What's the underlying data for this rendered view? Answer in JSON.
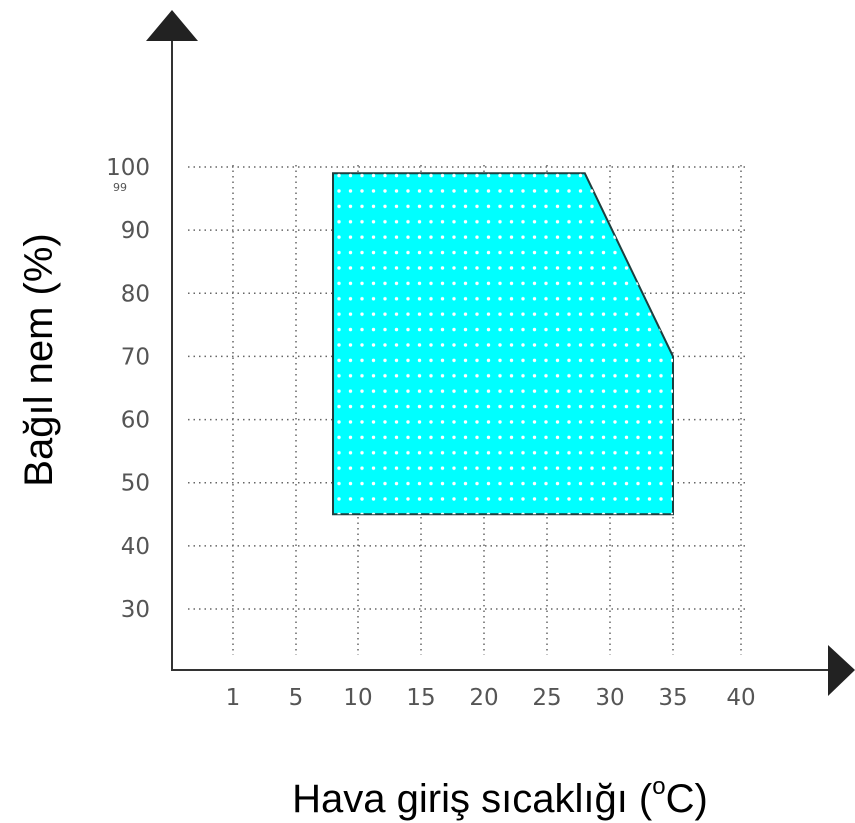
{
  "chart_data": {
    "type": "area",
    "xlabel": "Hava giriş sıcaklığı (",
    "xlabel_sup": "o",
    "xlabel_suffix": "C)",
    "ylabel": "Bağıl nem (%)",
    "x_tick_labels": [
      "1",
      "5",
      "10",
      "15",
      "20",
      "25",
      "30",
      "35",
      "40"
    ],
    "y_tick_labels": [
      "30",
      "40",
      "50",
      "60",
      "70",
      "80",
      "90",
      "100"
    ],
    "y_extra_tick_label": "99",
    "grid": "dotted",
    "region": {
      "name": "",
      "fill_color": "#00FFFF",
      "edge_color": "#1f3f3f",
      "points": [
        {
          "x": 8,
          "y": 45
        },
        {
          "x": 8,
          "y": 99
        },
        {
          "x": 28,
          "y": 99
        },
        {
          "x": 35,
          "y": 70
        },
        {
          "x": 35,
          "y": 45
        }
      ]
    }
  }
}
